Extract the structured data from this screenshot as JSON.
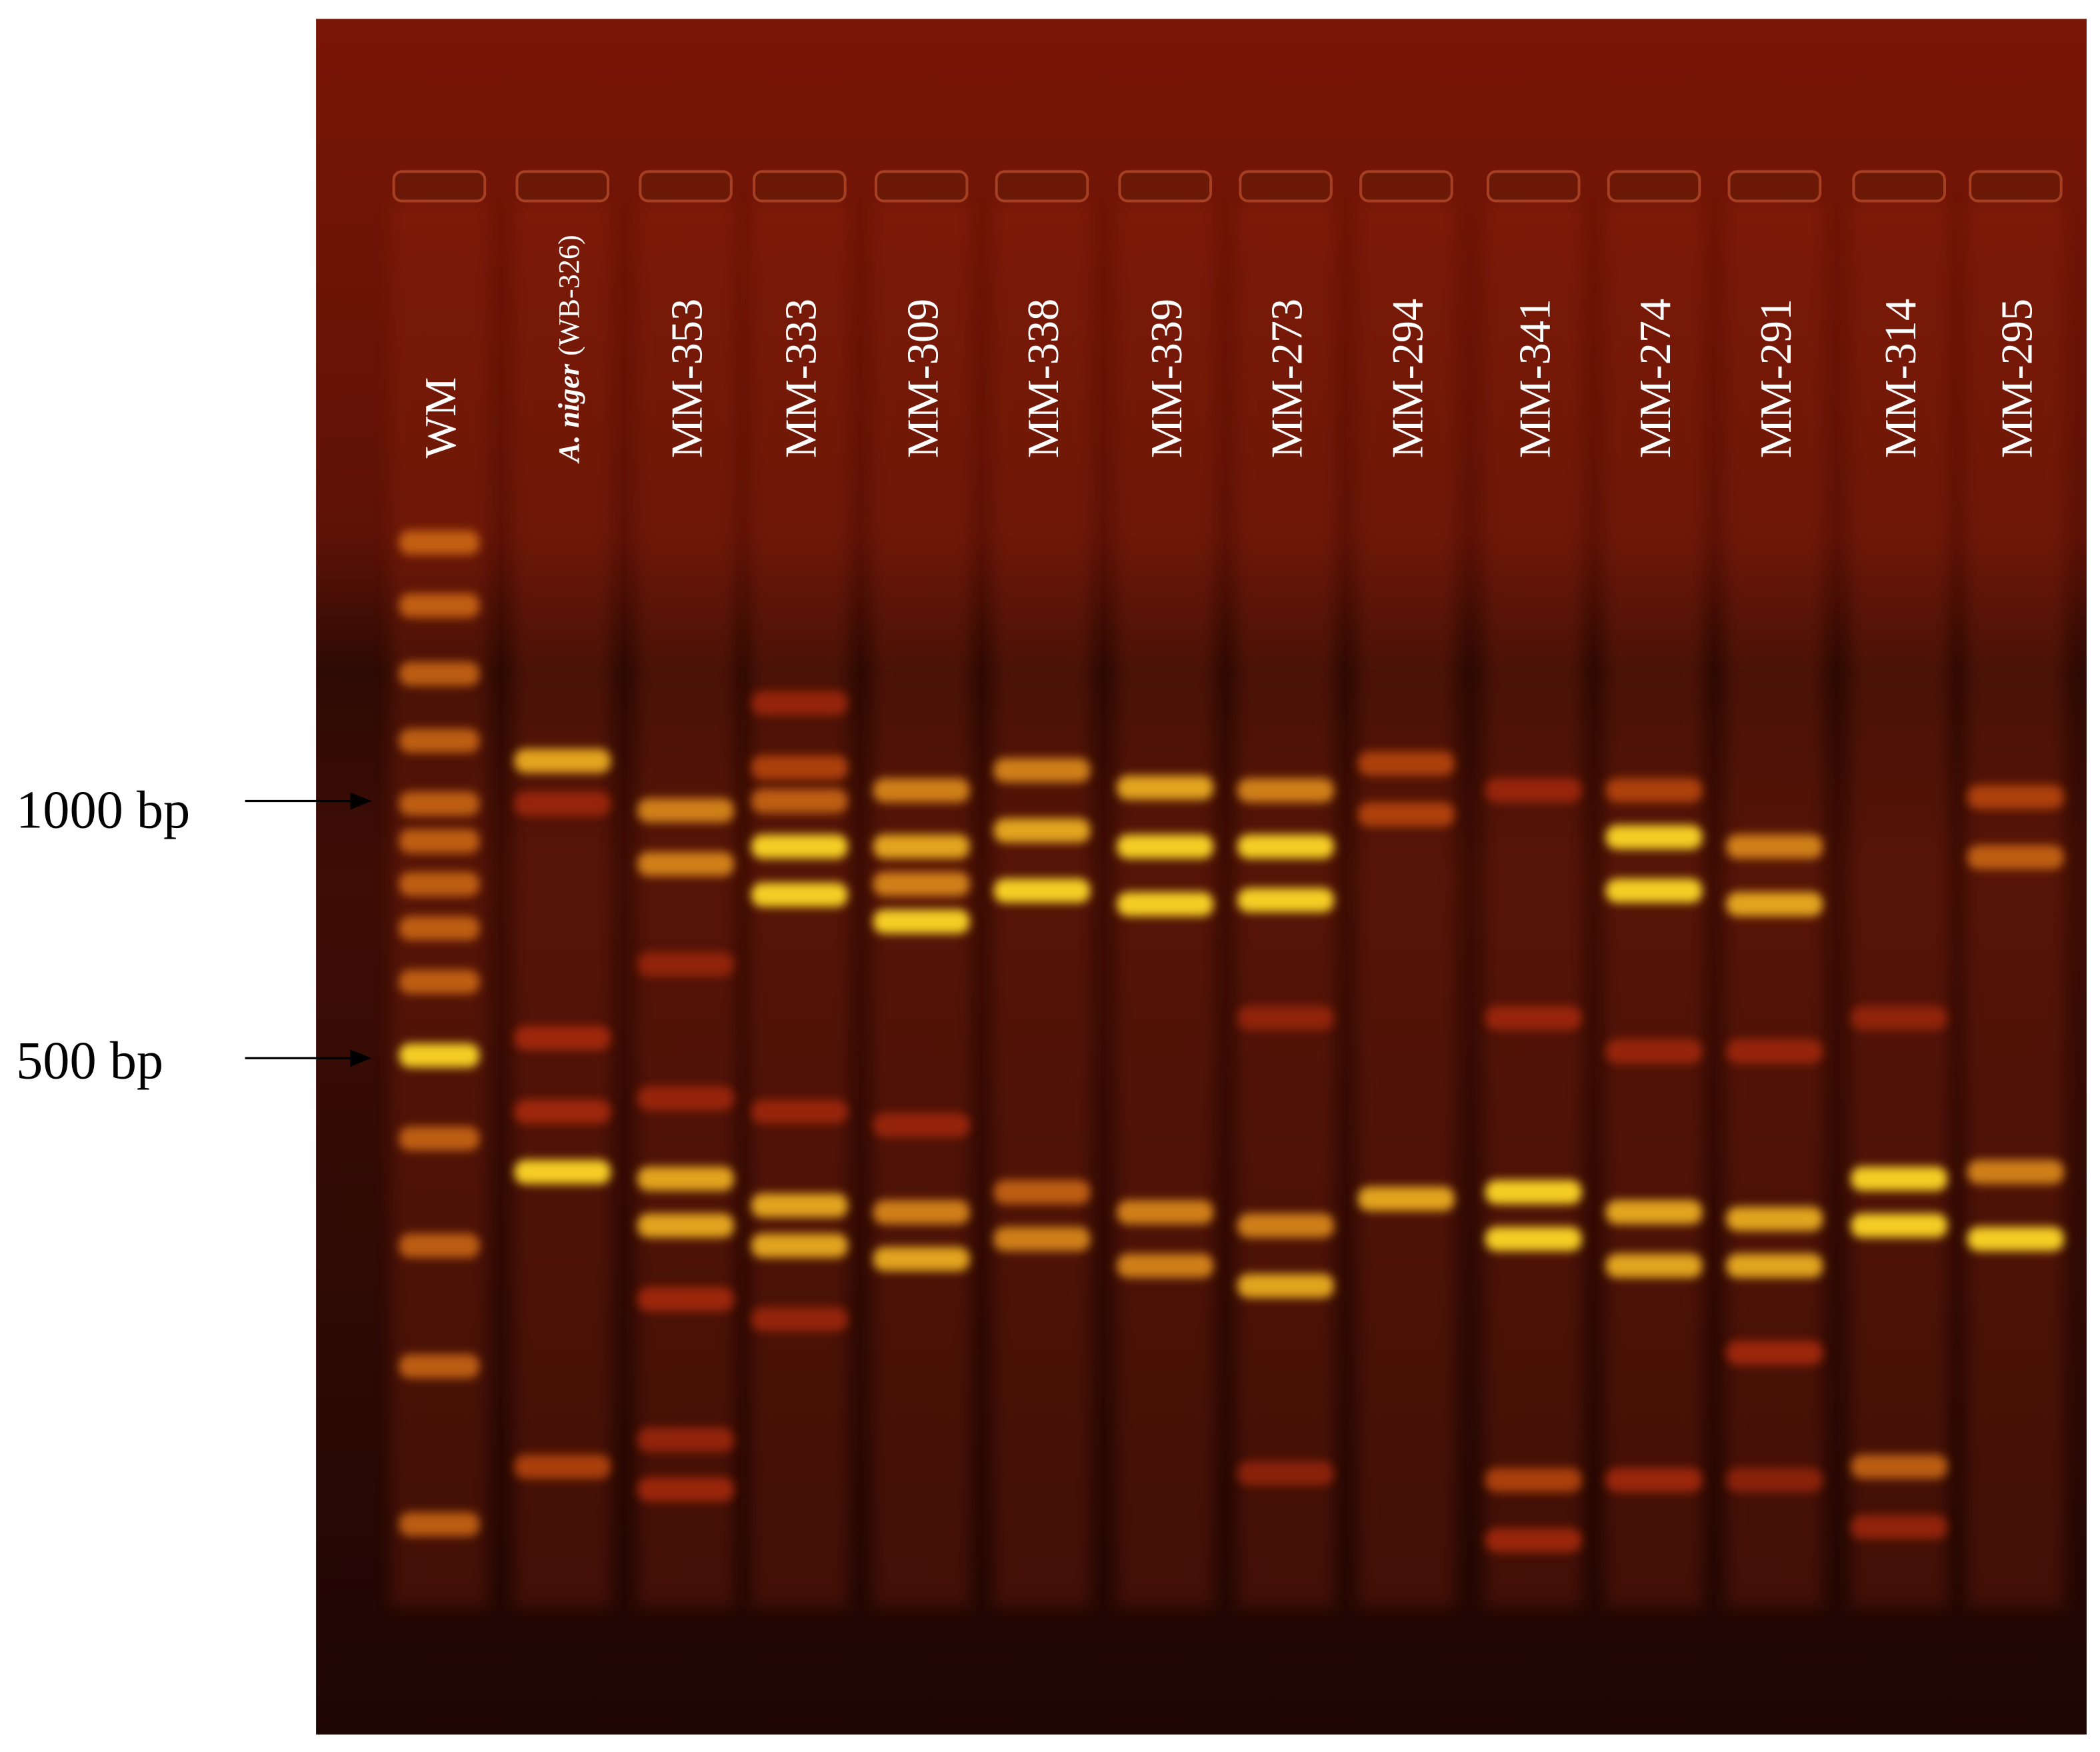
{
  "figure": {
    "lanes": [
      {
        "label": "WM"
      },
      {
        "label_italic": "A. niger",
        "label": "(WB-326)"
      },
      {
        "label": "MM-353"
      },
      {
        "label": "MM-333"
      },
      {
        "label": "MM-309"
      },
      {
        "label": "MM-338"
      },
      {
        "label": "MM-339"
      },
      {
        "label": "MM-273"
      },
      {
        "label": "MM-294"
      },
      {
        "label": "MM-341"
      },
      {
        "label": "MM-274"
      },
      {
        "label": "MM-291"
      },
      {
        "label": "MM-314"
      },
      {
        "label": "MM-295"
      }
    ],
    "markers": [
      {
        "label": "1000 bp"
      },
      {
        "label": "500 bp"
      }
    ]
  }
}
